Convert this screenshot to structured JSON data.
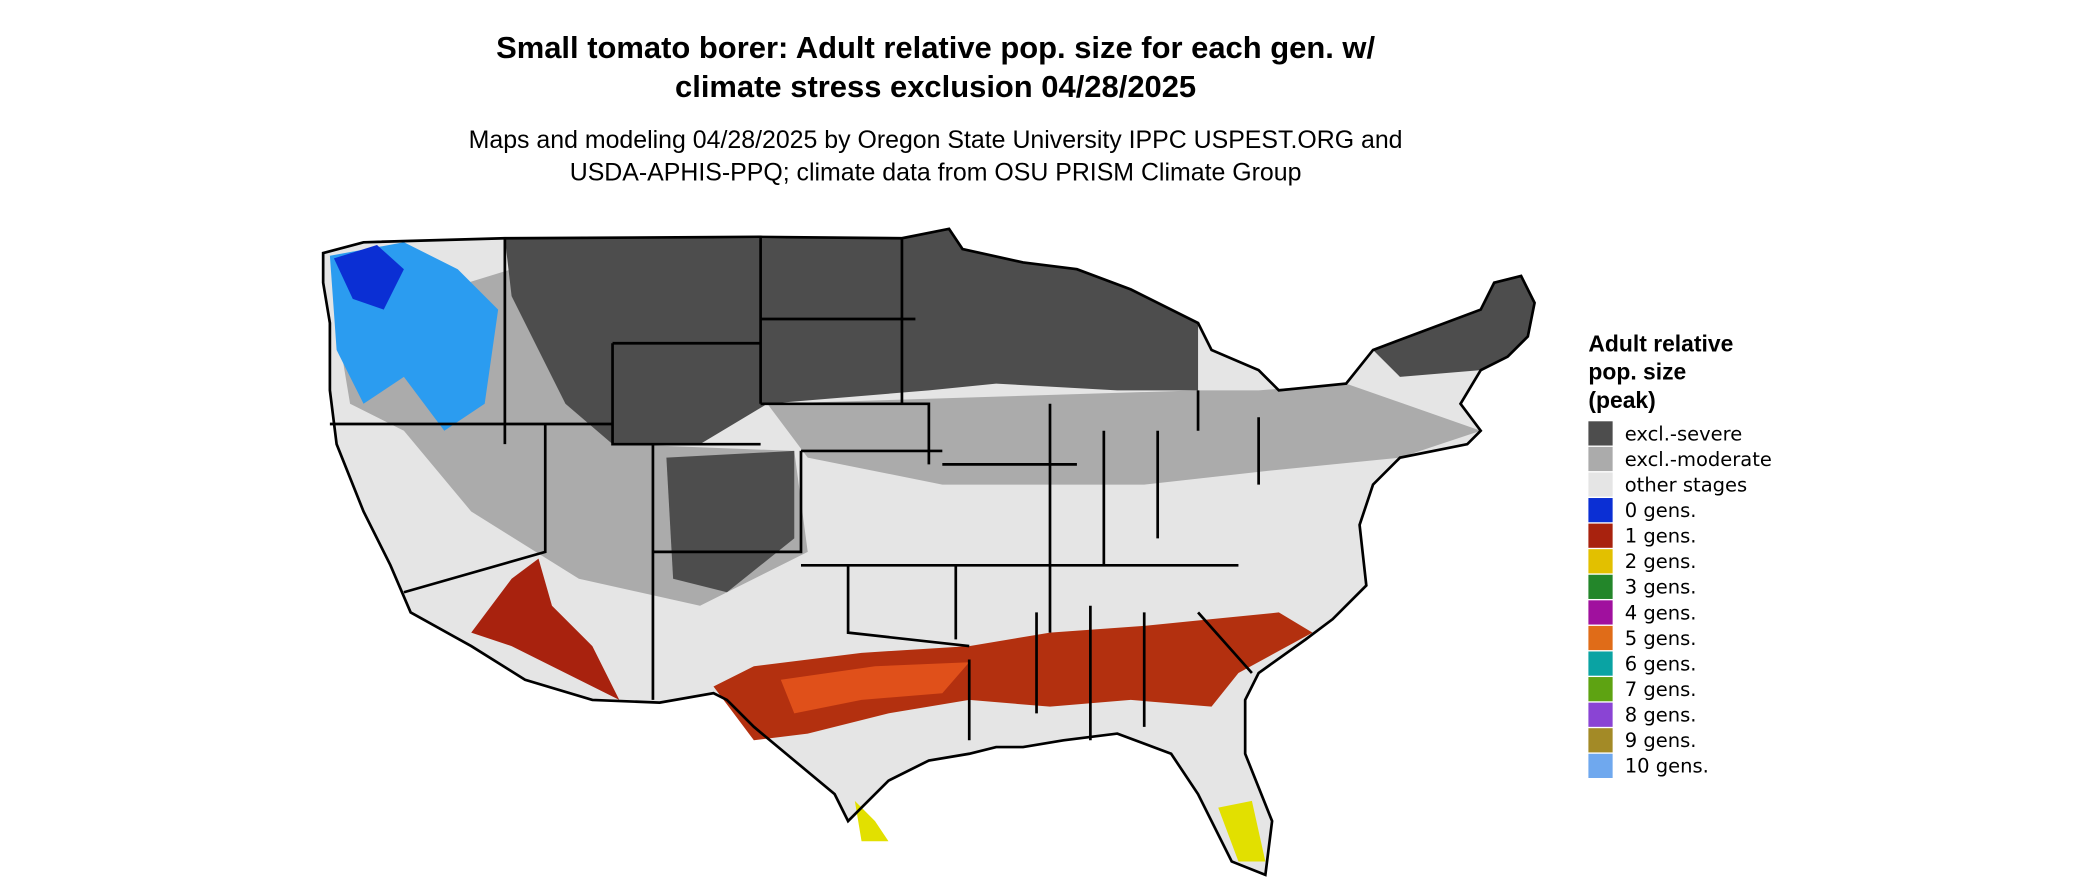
{
  "header": {
    "title": [
      "Small tomato borer: Adult relative pop. size for each gen. w/",
      "climate stress exclusion 04/28/2025"
    ],
    "subtitle": [
      "Maps and modeling 04/28/2025 by Oregon State University IPPC USPEST.ORG and",
      "USDA-APHIS-PPQ; climate data from OSU PRISM Climate Group"
    ]
  },
  "legend": {
    "title": [
      "Adult relative",
      "pop. size",
      "(peak)"
    ],
    "items": [
      {
        "label": "excl.-severe",
        "color": "#4d4d4d"
      },
      {
        "label": "excl.-moderate",
        "color": "#ababab"
      },
      {
        "label": "other stages",
        "color": "#e5e5e5"
      },
      {
        "label": "0 gens.",
        "color": "#0b2fd4"
      },
      {
        "label": "1 gens.",
        "color": "#a8220e"
      },
      {
        "label": "2 gens.",
        "color": "#e2c000"
      },
      {
        "label": "3 gens.",
        "color": "#23862a"
      },
      {
        "label": "4 gens.",
        "color": "#a0109e"
      },
      {
        "label": "5 gens.",
        "color": "#e06c18"
      },
      {
        "label": "6 gens.",
        "color": "#0aa3a3"
      },
      {
        "label": "7 gens.",
        "color": "#5ea312"
      },
      {
        "label": "8 gens.",
        "color": "#8a44d4"
      },
      {
        "label": "9 gens.",
        "color": "#a38a26"
      },
      {
        "label": "10 gens.",
        "color": "#6fa8ee"
      }
    ]
  }
}
